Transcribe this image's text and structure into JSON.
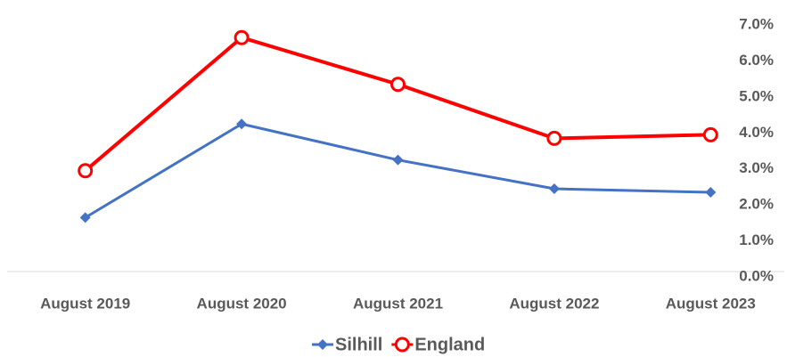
{
  "chart_data": {
    "type": "line",
    "categories": [
      "August 2019",
      "August 2020",
      "August 2021",
      "August 2022",
      "August 2023"
    ],
    "series": [
      {
        "name": "Silhill",
        "color": "#4472c4",
        "marker": "diamond",
        "values": [
          1.5,
          4.1,
          3.1,
          2.3,
          2.2
        ]
      },
      {
        "name": "England",
        "color": "#ff0000",
        "marker": "circle",
        "values": [
          2.8,
          6.5,
          5.2,
          3.7,
          3.8
        ]
      }
    ],
    "ylim": [
      0,
      7
    ],
    "yticks": [
      {
        "value": 0,
        "label": "0.0%"
      },
      {
        "value": 1,
        "label": "1.0%"
      },
      {
        "value": 2,
        "label": "2.0%"
      },
      {
        "value": 3,
        "label": "3.0%"
      },
      {
        "value": 4,
        "label": "4.0%"
      },
      {
        "value": 5,
        "label": "5.0%"
      },
      {
        "value": 6,
        "label": "6.0%"
      },
      {
        "value": 7,
        "label": "7.0%"
      }
    ],
    "legend": "bottom",
    "grid": false
  }
}
